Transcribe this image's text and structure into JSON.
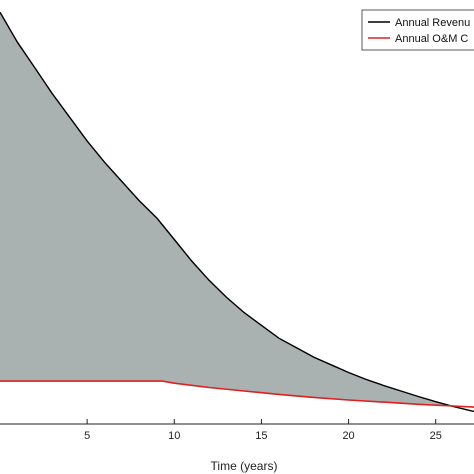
{
  "chart_data": {
    "type": "line",
    "title": "",
    "xlabel": "Time (years)",
    "ylabel": "",
    "xlim": [
      0,
      28
    ],
    "ylim": [
      0,
      1
    ],
    "x_ticks": [
      5,
      10,
      15,
      20,
      25
    ],
    "grid": false,
    "legend": {
      "placement": "top-right",
      "entries": [
        "Annual Revenu",
        "Annual O&M C"
      ]
    },
    "fill_between": {
      "color": "#a9b1b1",
      "between": [
        "Annual Revenu",
        "Annual O&M C"
      ]
    },
    "series": [
      {
        "name": "Annual Revenu",
        "color": "#000000",
        "x": [
          0,
          1,
          2,
          3,
          4,
          5,
          6,
          7,
          8,
          9,
          9.3,
          10,
          11,
          12,
          13,
          14,
          15,
          16,
          17,
          18,
          19,
          20,
          21,
          22,
          23,
          24,
          25,
          26,
          27,
          28
        ],
        "y": [
          0.96,
          0.89,
          0.83,
          0.77,
          0.715,
          0.66,
          0.61,
          0.565,
          0.52,
          0.48,
          0.465,
          0.43,
          0.38,
          0.335,
          0.295,
          0.26,
          0.23,
          0.2,
          0.178,
          0.156,
          0.138,
          0.12,
          0.104,
          0.09,
          0.077,
          0.064,
          0.052,
          0.041,
          0.031,
          0.022
        ]
      },
      {
        "name": "Annual O&M C",
        "color": "#e0201e",
        "x": [
          0,
          9,
          9.3,
          10,
          12,
          14,
          16,
          18,
          20,
          22,
          24,
          26,
          28
        ],
        "y": [
          0.1,
          0.1,
          0.1,
          0.095,
          0.085,
          0.077,
          0.069,
          0.062,
          0.056,
          0.051,
          0.046,
          0.042,
          0.038
        ]
      }
    ]
  }
}
